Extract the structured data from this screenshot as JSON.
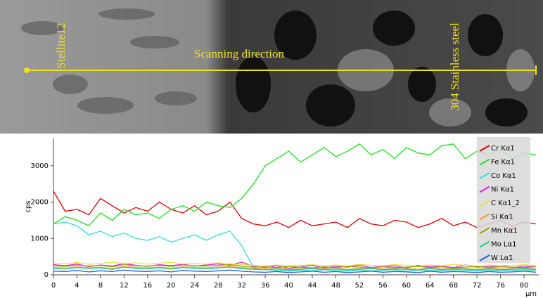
{
  "image": {
    "labels": [
      "Stellite12",
      "Scanning direction",
      "304 Stainless steel"
    ]
  },
  "chart_data": {
    "type": "line",
    "y_label": "cps",
    "x_unit": "µm",
    "legend": "right",
    "x": [
      0,
      2,
      4,
      6,
      8,
      10,
      12,
      14,
      16,
      18,
      20,
      22,
      24,
      26,
      28,
      30,
      32,
      34,
      36,
      38,
      40,
      42,
      44,
      46,
      48,
      50,
      52,
      54,
      56,
      58,
      60,
      62,
      64,
      66,
      68,
      70,
      72,
      74,
      76,
      78,
      80,
      82
    ],
    "xlim": [
      0,
      82.5
    ],
    "xticks": [
      0,
      4,
      8,
      12,
      16,
      20,
      24,
      28,
      32,
      36,
      40,
      44,
      48,
      52,
      56,
      60,
      64,
      68,
      72,
      76,
      80
    ],
    "ylim": [
      0,
      3750
    ],
    "yticks": [
      0,
      1000,
      2000,
      3000
    ],
    "series": [
      {
        "name": "Cr Kα1",
        "color": "#e00000",
        "values": [
          2300,
          1750,
          1800,
          1650,
          2100,
          1900,
          1700,
          1850,
          1750,
          2000,
          1800,
          1700,
          1900,
          1650,
          1750,
          2000,
          1550,
          1400,
          1350,
          1450,
          1300,
          1500,
          1350,
          1400,
          1450,
          1300,
          1550,
          1400,
          1350,
          1500,
          1450,
          1300,
          1400,
          1550,
          1350,
          1450,
          1300,
          1400,
          1500,
          1350,
          1450,
          1400
        ]
      },
      {
        "name": "Fe Kα1",
        "color": "#22e022",
        "values": [
          1400,
          1600,
          1500,
          1350,
          1700,
          1500,
          1800,
          1650,
          1700,
          1550,
          1800,
          1900,
          1750,
          2000,
          1900,
          1850,
          2100,
          2500,
          3000,
          3200,
          3400,
          3100,
          3300,
          3500,
          3250,
          3400,
          3600,
          3300,
          3450,
          3200,
          3500,
          3350,
          3300,
          3550,
          3600,
          3200,
          3400,
          3300,
          3450,
          3200,
          3350,
          3300
        ]
      },
      {
        "name": "Co Kα1",
        "color": "#33dddd",
        "values": [
          1400,
          1450,
          1350,
          1100,
          1200,
          1050,
          1150,
          1000,
          950,
          1050,
          900,
          1000,
          1100,
          950,
          1100,
          1200,
          800,
          200,
          150,
          120,
          100,
          130,
          110,
          140,
          120,
          100,
          130,
          110,
          120,
          140,
          100,
          130,
          120,
          110,
          140,
          120,
          100,
          130,
          110,
          120,
          140,
          110
        ]
      },
      {
        "name": "Ni Kα1",
        "color": "#e020e0",
        "values": [
          280,
          250,
          300,
          220,
          270,
          240,
          310,
          260,
          230,
          280,
          250,
          290,
          240,
          270,
          300,
          260,
          350,
          230,
          200,
          250,
          180,
          220,
          260,
          190,
          240,
          210,
          270,
          200,
          230,
          250,
          190,
          260,
          220,
          240,
          200,
          270,
          210,
          230,
          250,
          200,
          240,
          220
        ]
      },
      {
        "name": "C Kα1_2",
        "color": "#e8e040",
        "values": [
          320,
          300,
          340,
          290,
          310,
          350,
          300,
          330,
          290,
          320,
          340,
          300,
          310,
          290,
          330,
          300,
          280,
          260,
          250,
          270,
          240,
          260,
          280,
          250,
          270,
          240,
          290,
          260,
          250,
          280,
          260,
          240,
          270,
          250,
          290,
          260,
          240,
          270,
          250,
          260,
          280,
          250
        ]
      },
      {
        "name": "Si Kα1",
        "color": "#f0a030",
        "values": [
          200,
          180,
          220,
          190,
          210,
          170,
          230,
          200,
          190,
          210,
          180,
          220,
          200,
          190,
          210,
          230,
          200,
          170,
          160,
          180,
          150,
          170,
          190,
          160,
          180,
          150,
          170,
          190,
          160,
          180,
          170,
          150,
          190,
          160,
          180,
          170,
          150,
          180,
          160,
          170,
          190,
          160
        ]
      },
      {
        "name": "Mn Kα1",
        "color": "#a0a000",
        "values": [
          250,
          230,
          270,
          240,
          260,
          220,
          280,
          250,
          240,
          260,
          230,
          270,
          250,
          240,
          260,
          280,
          240,
          210,
          220,
          200,
          230,
          210,
          190,
          220,
          200,
          230,
          210,
          190,
          220,
          200,
          210,
          230,
          200,
          220,
          190,
          210,
          230,
          200,
          220,
          210,
          200,
          220
        ]
      },
      {
        "name": "Mo Lα1",
        "color": "#20d090",
        "values": [
          180,
          160,
          200,
          170,
          190,
          150,
          210,
          180,
          170,
          190,
          160,
          200,
          180,
          170,
          190,
          210,
          170,
          150,
          140,
          160,
          130,
          150,
          170,
          140,
          160,
          130,
          150,
          170,
          140,
          160,
          150,
          130,
          170,
          140,
          160,
          150,
          130,
          160,
          140,
          150,
          170,
          140
        ]
      },
      {
        "name": "W Lα1",
        "color": "#2060f0",
        "values": [
          100,
          90,
          120,
          80,
          110,
          90,
          130,
          100,
          90,
          110,
          80,
          120,
          100,
          90,
          110,
          130,
          100,
          80,
          70,
          90,
          60,
          80,
          100,
          70,
          90,
          60,
          80,
          100,
          70,
          90,
          80,
          60,
          100,
          70,
          90,
          80,
          60,
          90,
          70,
          80,
          100,
          70
        ]
      }
    ]
  }
}
